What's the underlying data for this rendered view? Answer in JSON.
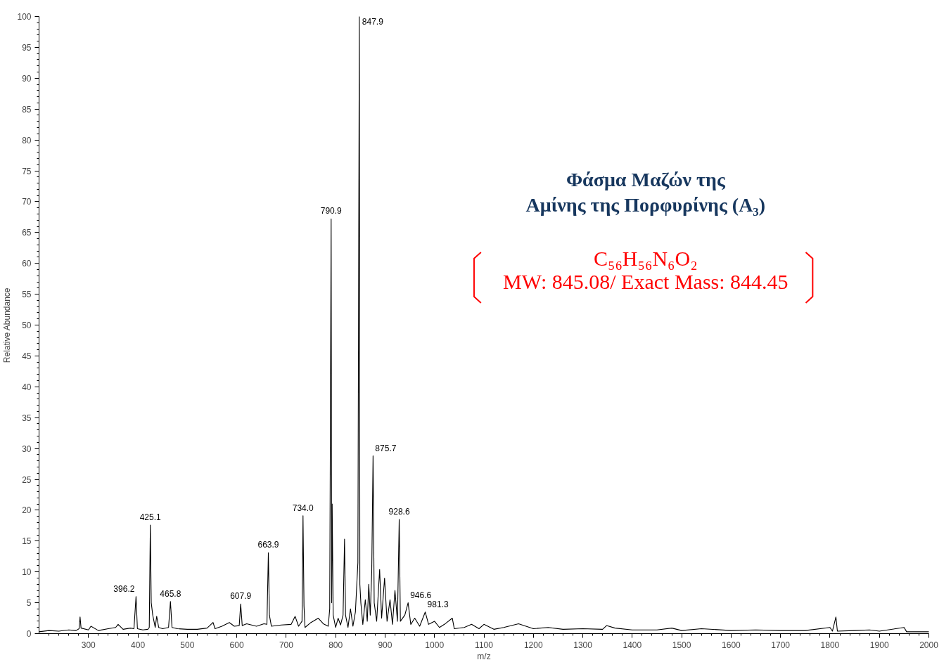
{
  "chart_data": {
    "type": "line",
    "xlabel": "m/z",
    "ylabel": "Relative Abundance",
    "x": [
      200,
      220,
      240,
      260,
      275,
      281,
      283,
      285,
      300,
      305,
      320,
      340,
      355,
      360,
      370,
      385,
      392,
      396.2,
      399,
      410,
      420,
      423,
      425.1,
      427,
      430,
      435,
      438,
      442,
      450,
      462,
      465.8,
      469,
      480,
      500,
      520,
      540,
      552,
      556,
      570,
      585,
      595,
      605,
      607.9,
      611,
      620,
      640,
      655,
      661,
      663.9,
      666,
      670,
      690,
      710,
      718,
      725,
      732,
      734.0,
      736,
      738,
      750,
      765,
      775,
      785,
      788,
      790.9,
      792,
      793,
      795,
      800,
      805,
      810,
      815,
      818,
      820,
      825,
      830,
      835,
      840,
      845,
      847.9,
      849,
      851,
      855,
      860,
      864,
      867,
      870,
      873,
      875.7,
      878,
      883,
      889,
      893,
      899,
      904,
      910,
      915,
      920,
      925,
      928.6,
      931,
      940,
      946.6,
      952,
      960,
      970,
      981.3,
      988,
      1000,
      1010,
      1020,
      1036,
      1040,
      1060,
      1075,
      1090,
      1100,
      1120,
      1140,
      1170,
      1200,
      1230,
      1260,
      1300,
      1340,
      1348,
      1365,
      1400,
      1450,
      1480,
      1500,
      1540,
      1600,
      1650,
      1700,
      1750,
      1800,
      1805,
      1812,
      1815,
      1850,
      1880,
      1900,
      1950,
      1955,
      2000
    ],
    "series": [
      {
        "color": "#000000",
        "values": [
          0.3,
          0.5,
          0.4,
          0.6,
          0.5,
          0.8,
          2.7,
          0.9,
          0.6,
          1.2,
          0.5,
          0.8,
          1.0,
          1.5,
          0.7,
          0.9,
          0.8,
          6.0,
          0.8,
          0.6,
          0.7,
          1.0,
          17.6,
          5.0,
          3.0,
          1.0,
          2.8,
          1.0,
          0.8,
          1.0,
          5.2,
          1.0,
          0.8,
          0.7,
          0.7,
          0.9,
          1.8,
          0.8,
          1.2,
          1.8,
          1.2,
          1.3,
          4.8,
          1.3,
          1.6,
          1.2,
          1.6,
          1.5,
          13.1,
          3.0,
          1.2,
          1.4,
          1.5,
          2.8,
          1.2,
          2.0,
          19.1,
          4.5,
          1.0,
          1.8,
          2.5,
          1.6,
          1.2,
          4.0,
          67.2,
          5.0,
          21.0,
          3.0,
          1.0,
          2.5,
          1.4,
          3.0,
          15.3,
          3.0,
          1.0,
          4.0,
          1.2,
          3.5,
          11.5,
          100,
          8.0,
          5.0,
          1.5,
          5.5,
          2.0,
          8.0,
          3.0,
          10.0,
          28.8,
          5.0,
          2.0,
          10.4,
          2.5,
          9.0,
          2.0,
          5.5,
          1.5,
          7.0,
          2.0,
          18.5,
          2.0,
          3.0,
          5.0,
          1.5,
          2.5,
          1.2,
          3.5,
          1.5,
          2.0,
          1.0,
          1.5,
          2.5,
          0.8,
          1.0,
          1.5,
          0.8,
          1.5,
          0.7,
          1.0,
          1.6,
          0.8,
          1.0,
          0.7,
          0.8,
          0.7,
          1.3,
          0.9,
          0.6,
          0.6,
          0.9,
          0.5,
          0.8,
          0.5,
          0.6,
          0.5,
          0.5,
          1.0,
          0.4,
          2.7,
          0.4,
          0.5,
          0.6,
          0.4,
          1.0,
          0.3,
          0.3
        ]
      }
    ],
    "xlim": [
      200,
      2000
    ],
    "ylim": [
      0,
      100
    ],
    "xticks": [
      300,
      400,
      500,
      600,
      700,
      800,
      900,
      1000,
      1100,
      1200,
      1300,
      1400,
      1500,
      1600,
      1700,
      1800,
      1900,
      2000
    ],
    "yticks": [
      0,
      5,
      10,
      15,
      20,
      25,
      30,
      35,
      40,
      45,
      50,
      55,
      60,
      65,
      70,
      75,
      80,
      85,
      90,
      95,
      100
    ],
    "grid": false,
    "line_style": "solid",
    "marker": "none",
    "annotations": [
      {
        "text": "396.2",
        "x": 396.2,
        "y": 6.0
      },
      {
        "text": "425.1",
        "x": 425.1,
        "y": 17.6
      },
      {
        "text": "465.8",
        "x": 465.8,
        "y": 5.2
      },
      {
        "text": "607.9",
        "x": 607.9,
        "y": 4.8
      },
      {
        "text": "663.9",
        "x": 663.9,
        "y": 13.1
      },
      {
        "text": "734.0",
        "x": 734.0,
        "y": 19.1
      },
      {
        "text": "790.9",
        "x": 790.9,
        "y": 67.2
      },
      {
        "text": "847.9",
        "x": 847.9,
        "y": 100
      },
      {
        "text": "875.7",
        "x": 875.7,
        "y": 28.8
      },
      {
        "text": "928.6",
        "x": 928.6,
        "y": 18.5
      },
      {
        "text": "946.6",
        "x": 946.6,
        "y": 5.0
      },
      {
        "text": "981.3",
        "x": 981.3,
        "y": 3.5
      },
      "Φάσμα Μαζών της",
      "Αμίνης της Πορφυρίνης (A₃)",
      "C₅₆H₅₆N₆O₂",
      "MW: 845.08/ Exact Mass: 844.45"
    ]
  }
}
